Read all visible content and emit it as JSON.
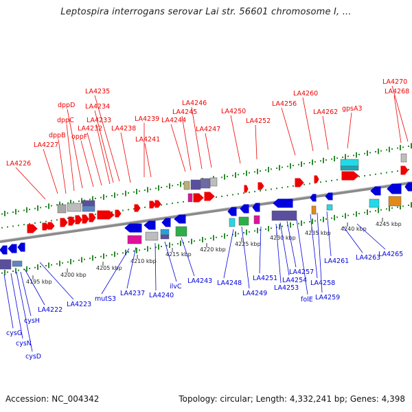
{
  "header": {
    "title": "Leptospira interrogans serovar Lai str. 56601 chromosome I, ..."
  },
  "footer": {
    "accession": "Accession: NC_004342",
    "topology": "Topology: circular; Length: 4,332,241 bp; Genes: 4,398"
  },
  "colors": {
    "forward": "#ee0000",
    "reverse": "#0000dd",
    "backbone": "#8a8a8a",
    "ticks": "#2a8a2a"
  },
  "kbp_ticks": [
    "4195 kbp",
    "4200 kbp",
    "4205 kbp",
    "4210 kbp",
    "4215 kbp",
    "4220 kbp",
    "4225 kbp",
    "4230 kbp",
    "4235 kbp",
    "4240 kbp",
    "4245 kbp"
  ],
  "forward_genes": [
    "LA4226",
    "LA4227",
    "dppB",
    "dppC",
    "dppD",
    "oppF",
    "LA4232",
    "LA4233",
    "LA4234",
    "LA4235",
    "LA4238",
    "LA4239",
    "LA4241",
    "LA4244",
    "LA4245",
    "LA4246",
    "LA4247",
    "LA4250",
    "LA4252",
    "LA4256",
    "LA4260",
    "LA4262",
    "gpsA3",
    "LA4268",
    "LA4270"
  ],
  "reverse_genes": [
    "cysG",
    "cysN",
    "cysD",
    "cysH",
    "LA4222",
    "LA4223",
    "mutS3",
    "LA4237",
    "LA4240",
    "ilvC",
    "LA4243",
    "LA4248",
    "LA4249",
    "LA4251",
    "LA4253",
    "LA4254",
    "folE",
    "LA4257",
    "LA4258",
    "LA4259",
    "LA4261",
    "LA4263",
    "LA4265"
  ]
}
